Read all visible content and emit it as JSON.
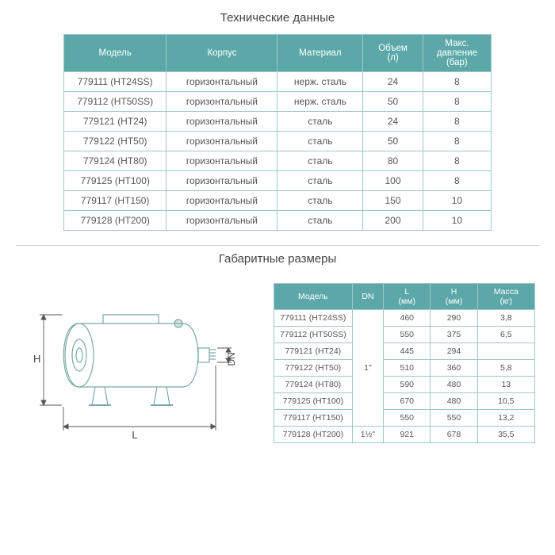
{
  "section1": {
    "title": "Технические данные",
    "columns": [
      "Модель",
      "Корпус",
      "Материал",
      "Объем\n(л)",
      "Макс. давление\n(бар)"
    ],
    "colWidths": [
      "24%",
      "26%",
      "20%",
      "14%",
      "16%"
    ],
    "rows": [
      [
        "779111 (HT24SS)",
        "горизонтальный",
        "нерж. сталь",
        "24",
        "8"
      ],
      [
        "779112 (HT50SS)",
        "горизонтальный",
        "нерж. сталь",
        "50",
        "8"
      ],
      [
        "779121 (HT24)",
        "горизонтальный",
        "сталь",
        "24",
        "8"
      ],
      [
        "779122 (HT50)",
        "горизонтальный",
        "сталь",
        "50",
        "8"
      ],
      [
        "779124 (HT80)",
        "горизонтальный",
        "сталь",
        "80",
        "8"
      ],
      [
        "779125 (HT100)",
        "горизонтальный",
        "сталь",
        "100",
        "8"
      ],
      [
        "779117 (HT150)",
        "горизонтальный",
        "сталь",
        "150",
        "10"
      ],
      [
        "779128 (HT200)",
        "горизонтальный",
        "сталь",
        "200",
        "10"
      ]
    ]
  },
  "section2": {
    "title": "Габаритные размеры",
    "columns": [
      "Модель",
      "DN",
      "L\n(мм)",
      "H\n(мм)",
      "Масса\n(кг)"
    ],
    "colWidths": [
      "30%",
      "12%",
      "18%",
      "18%",
      "22%"
    ],
    "rows": [
      [
        "779111 (HT24SS)",
        "",
        "460",
        "290",
        "3,8"
      ],
      [
        "779112 (HT50SS)",
        "",
        "550",
        "375",
        "6,5"
      ],
      [
        "779121 (HT24)",
        "",
        "445",
        "294",
        ""
      ],
      [
        "779122 (HT50)",
        "1\"",
        "510",
        "360",
        "5,8"
      ],
      [
        "779124 (HT80)",
        "",
        "590",
        "480",
        "13"
      ],
      [
        "779125 (HT100)",
        "",
        "670",
        "480",
        "10,5"
      ],
      [
        "779117 (HT150)",
        "",
        "550",
        "550",
        "13,2"
      ],
      [
        "779128 (HT200)",
        "1½\"",
        "921",
        "678",
        "35,5"
      ]
    ],
    "dnSpan1": {
      "start": 0,
      "len": 7
    },
    "dnSpan2": {
      "start": 7,
      "len": 1
    }
  },
  "diagram": {
    "labels": {
      "H": "H",
      "L": "L",
      "DN": "DN"
    },
    "stroke": "#7aa8a8",
    "strokeDark": "#4a7a7a",
    "fill": "none"
  },
  "colors": {
    "headerBg": "#5ca8a8",
    "headerText": "#ffffff",
    "border": "#9ec8c8",
    "text": "#555555"
  }
}
